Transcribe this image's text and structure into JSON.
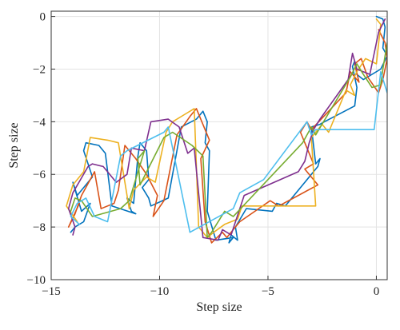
{
  "chart_data": {
    "type": "line",
    "title": "",
    "xlabel": "Step size",
    "ylabel": "Step size",
    "xlim": [
      -15,
      0.5
    ],
    "ylim": [
      -10,
      0.2
    ],
    "grid": true,
    "legend": "none",
    "x_ticks": [
      -15,
      -10,
      -5,
      0
    ],
    "x_tick_labels": [
      "−15",
      "−10",
      "−5",
      "0"
    ],
    "y_ticks": [
      0,
      -2,
      -4,
      -6,
      -8,
      -10
    ],
    "y_tick_labels": [
      "0",
      "−2",
      "−4",
      "−6",
      "−8",
      "−10"
    ],
    "series": [
      {
        "color": "#0072BD",
        "x": [
          0,
          0.3,
          0.4,
          0.3,
          0.5,
          0.2,
          -0.6,
          -0.9,
          -1.0,
          -1.1,
          -0.9,
          -1.0,
          -2.4,
          -2.6,
          -3.0,
          -2.8,
          -2.6,
          -2.7,
          -4.2,
          -4.6,
          -4.8,
          -6.0,
          -6.5,
          -6.4,
          -6.7,
          -6.8,
          -6.6,
          -7.4,
          -7.8,
          -7.7,
          -7.9,
          -7.8,
          -8.0,
          -8.3,
          -9.0,
          -9.6,
          -10.4,
          -10.5,
          -10.8,
          -10.5,
          -10.6,
          -10.9,
          -11.0,
          -11.2,
          -11.5,
          -11.3,
          -11.1,
          -12.2,
          -12.5,
          -12.8,
          -13.4,
          -13.5,
          -13.3,
          -13.1,
          -13.8,
          -14.0,
          -13.6,
          -13.2,
          -13.5,
          -13.9,
          -14.1
        ],
        "y": [
          0,
          -0.1,
          -0.4,
          -1.2,
          -1.5,
          -2.0,
          -2.4,
          -2.2,
          -1.7,
          -1.9,
          -2.7,
          -3.4,
          -4.0,
          -4.1,
          -4.2,
          -5.6,
          -5.4,
          -5.7,
          -7.2,
          -7.1,
          -7.4,
          -7.3,
          -8.0,
          -8.5,
          -8.3,
          -8.6,
          -8.4,
          -8.5,
          -7.4,
          -5.1,
          -4.8,
          -4.0,
          -3.6,
          -3.9,
          -4.2,
          -6.9,
          -7.2,
          -6.9,
          -6.5,
          -6.2,
          -5.1,
          -4.8,
          -5.3,
          -7.1,
          -6.9,
          -7.4,
          -7.5,
          -7.2,
          -5.2,
          -4.9,
          -4.8,
          -5.1,
          -5.6,
          -6.1,
          -6.8,
          -6.3,
          -7.4,
          -7.1,
          -7.8,
          -8.0,
          -8.2
        ]
      },
      {
        "color": "#D95319",
        "x": [
          0.1,
          0.4,
          0.5,
          0.3,
          0.1,
          -0.4,
          -0.7,
          -1.0,
          -0.8,
          -1.2,
          -1.4,
          -3.0,
          -3.2,
          -3.5,
          -2.9,
          -3.3,
          -2.7,
          -4.5,
          -4.9,
          -6.3,
          -6.6,
          -6.9,
          -7.1,
          -7.6,
          -7.9,
          -8.1,
          -7.7,
          -8.3,
          -8.6,
          -9.2,
          -9.8,
          -10.3,
          -10.1,
          -10.6,
          -11.1,
          -11.6,
          -11.9,
          -12.1,
          -12.7,
          -13.0,
          -13.6,
          -13.9,
          -14.2,
          -13.7
        ],
        "y": [
          -0.5,
          -1.0,
          -1.6,
          -2.4,
          -2.9,
          -2.3,
          -1.6,
          -1.8,
          -2.5,
          -2.1,
          -2.9,
          -4.3,
          -4.0,
          -4.4,
          -5.6,
          -5.8,
          -6.4,
          -7.2,
          -7.0,
          -7.8,
          -8.1,
          -8.4,
          -8.2,
          -8.6,
          -7.8,
          -5.4,
          -4.7,
          -3.5,
          -3.8,
          -4.5,
          -7.0,
          -7.6,
          -6.8,
          -6.0,
          -5.4,
          -4.9,
          -6.6,
          -7.1,
          -7.3,
          -5.9,
          -6.8,
          -7.5,
          -8.0,
          -7.1
        ]
      },
      {
        "color": "#EDB120",
        "x": [
          0,
          0.2,
          0.0,
          -0.5,
          -0.9,
          -1.2,
          -1.0,
          -1.4,
          -1.6,
          -2.2,
          -2.5,
          -3.0,
          -2.8,
          -6.2,
          -6.4,
          -7.0,
          -7.5,
          -7.8,
          -8.2,
          -8.4,
          -8.8,
          -9.4,
          -9.7,
          -10.2,
          -10.6,
          -11.2,
          -11.4,
          -11.9,
          -12.4,
          -13.2,
          -13.5,
          -14.0,
          -14.3,
          -13.8
        ],
        "y": [
          -0.1,
          -0.3,
          -1.8,
          -1.6,
          -2.1,
          -2.6,
          -3.0,
          -2.8,
          -3.2,
          -4.4,
          -4.1,
          -4.6,
          -7.2,
          -7.2,
          -7.7,
          -7.9,
          -8.2,
          -8.4,
          -8.0,
          -3.5,
          -3.7,
          -4.0,
          -4.4,
          -6.3,
          -6.1,
          -6.6,
          -7.3,
          -4.8,
          -4.7,
          -4.6,
          -5.9,
          -6.4,
          -7.2,
          -7.8
        ]
      },
      {
        "color": "#7E2F8E",
        "x": [
          0.4,
          0.1,
          -0.3,
          -0.9,
          -1.1,
          -1.3,
          -2.6,
          -2.9,
          -3.1,
          -3.3,
          -3.6,
          -6.1,
          -6.7,
          -7.1,
          -7.3,
          -8.0,
          -8.4,
          -8.7,
          -9.1,
          -9.6,
          -10.4,
          -10.7,
          -11.3,
          -11.5,
          -12.0,
          -12.6,
          -13.1,
          -13.3,
          -14.0,
          -14.2,
          -13.9,
          -14.0
        ],
        "y": [
          -0.1,
          -0.6,
          -2.2,
          -2.0,
          -1.4,
          -2.4,
          -3.9,
          -4.3,
          -4.8,
          -5.5,
          -5.9,
          -6.8,
          -8.3,
          -8.1,
          -8.5,
          -8.4,
          -5.0,
          -5.2,
          -4.2,
          -3.9,
          -4.0,
          -5.1,
          -5.0,
          -6.0,
          -6.3,
          -5.7,
          -5.6,
          -5.7,
          -6.7,
          -7.3,
          -8.0,
          -8.3
        ]
      },
      {
        "color": "#77AC30",
        "x": [
          0.5,
          0.3,
          0.2,
          -0.2,
          -0.6,
          -0.9,
          -1.2,
          -2.8,
          -3.0,
          -3.4,
          -6.6,
          -7.0,
          -7.6,
          -7.8,
          -8.0,
          -8.5,
          -9.4,
          -9.8,
          -10.9,
          -11.0,
          -10.7,
          -11.4,
          -11.8,
          -13.1,
          -13.6,
          -13.9,
          -14.1
        ],
        "y": [
          -1.0,
          -2.0,
          -2.6,
          -2.7,
          -2.2,
          -1.8,
          -2.3,
          -4.5,
          -4.2,
          -4.8,
          -7.6,
          -7.4,
          -8.2,
          -8.4,
          -5.3,
          -4.9,
          -4.4,
          -4.6,
          -6.4,
          -5.4,
          -5.1,
          -7.0,
          -7.3,
          -7.6,
          -7.0,
          -6.9,
          -7.4
        ]
      },
      {
        "color": "#4DBEEE",
        "x": [
          0.5,
          0.2,
          -0.1,
          -2.8,
          -3.0,
          -3.2,
          -5.2,
          -6.3,
          -6.6,
          -8.6,
          -9.6,
          -9.8,
          -11.5,
          -11.8,
          -12.4,
          -13.0,
          -13.4,
          -13.8,
          -14.1,
          -13.7
        ],
        "y": [
          -2.9,
          -2.1,
          -4.3,
          -4.3,
          -4.5,
          -4.0,
          -6.2,
          -6.7,
          -7.3,
          -8.2,
          -4.2,
          -4.4,
          -5.1,
          -5.3,
          -7.8,
          -7.6,
          -6.9,
          -7.1,
          -7.6,
          -7.9
        ]
      }
    ]
  }
}
